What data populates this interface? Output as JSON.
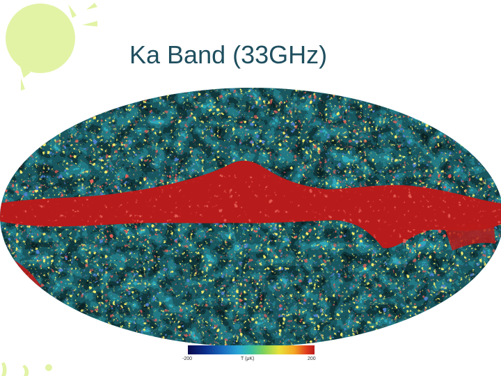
{
  "title": "Ka Band (33GHz)",
  "colorbar": {
    "min_label": "-200",
    "unit_label": "T (μK)",
    "max_label": "200"
  },
  "colors": {
    "galactic_plane": "#b81b1b",
    "title_text": "#1f4f5f",
    "decor_green": "#e2f3a6"
  }
}
